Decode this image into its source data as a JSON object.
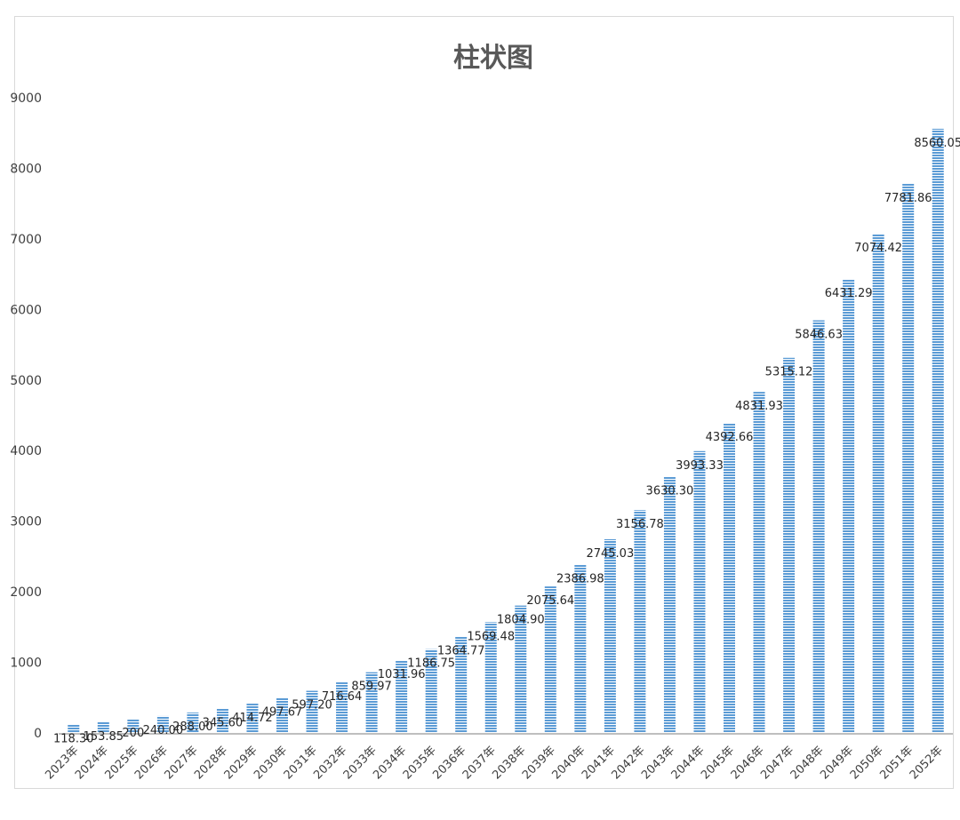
{
  "chart_data": {
    "type": "bar",
    "title": "柱状图",
    "xlabel": "",
    "ylabel": "",
    "ylim": [
      0,
      9000
    ],
    "yticks": [
      0,
      1000,
      2000,
      3000,
      4000,
      5000,
      6000,
      7000,
      8000,
      9000
    ],
    "grid": false,
    "legend": "none",
    "bar_color": "#5b9bd5",
    "categories": [
      "2023年",
      "2024年",
      "2025年",
      "2026年",
      "2027年",
      "2028年",
      "2029年",
      "2030年",
      "2031年",
      "2032年",
      "2033年",
      "2034年",
      "2035年",
      "2036年",
      "2037年",
      "2038年",
      "2039年",
      "2040年",
      "2041年",
      "2042年",
      "2043年",
      "2044年",
      "2045年",
      "2046年",
      "2047年",
      "2048年",
      "2049年",
      "2050年",
      "2051年",
      "2052年"
    ],
    "values": [
      118.3,
      153.85,
      200,
      240,
      288,
      345.6,
      414.72,
      497.67,
      597.2,
      716.64,
      859.97,
      1031.96,
      1186.75,
      1364.77,
      1569.48,
      1804.9,
      2075.64,
      2386.98,
      2745.03,
      3156.78,
      3630.3,
      3993.33,
      4392.66,
      4831.93,
      5315.12,
      5846.63,
      6431.29,
      7074.42,
      7781.86,
      8560.05
    ],
    "data_labels": [
      "118.30",
      "153.85",
      "200",
      "240.00",
      "288.00",
      "345.60",
      "414.72",
      "497.67",
      "597.20",
      "716.64",
      "859.97",
      "1031.96",
      "1186.75",
      "1364.77",
      "1569.48",
      "1804.90",
      "2075.64",
      "2386.98",
      "2745.03",
      "3156.78",
      "3630.30",
      "3993.33",
      "4392.66",
      "4831.93",
      "5315.12",
      "5846.63",
      "6431.29",
      "7074.42",
      "7781.86",
      "8560.05"
    ]
  }
}
